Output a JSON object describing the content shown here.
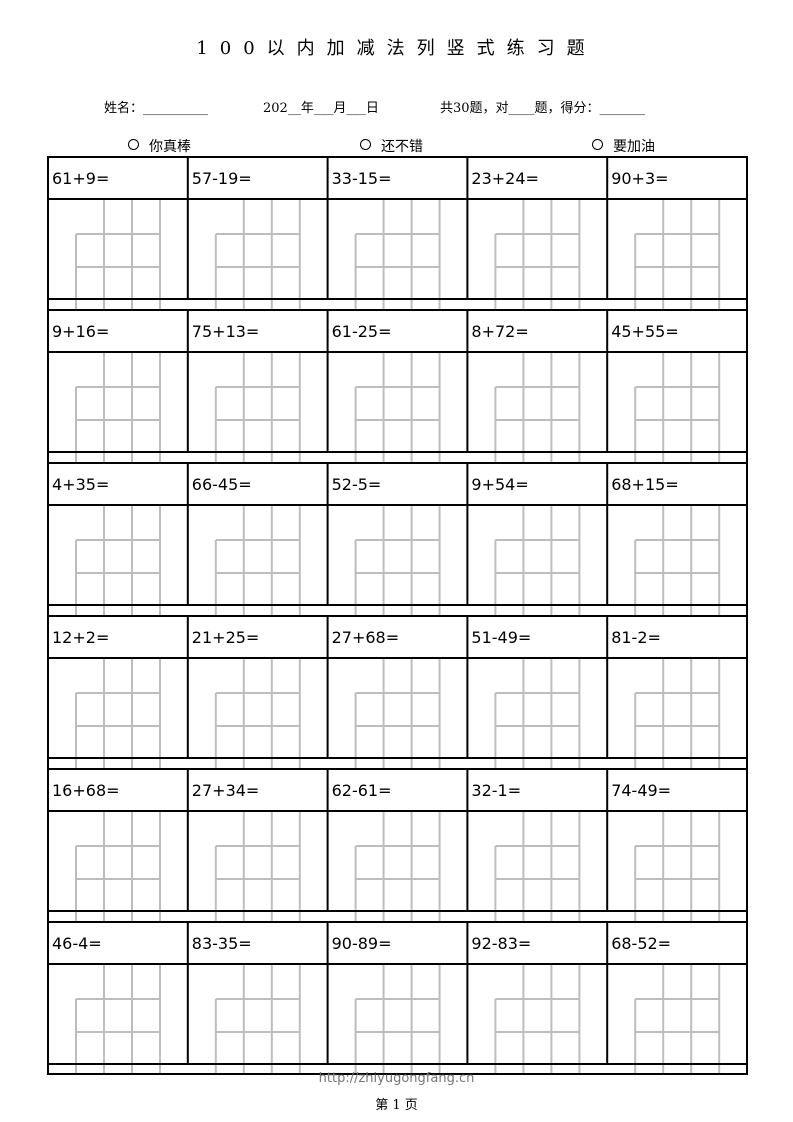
{
  "title": "100以内加减法列竖式练习题",
  "info": {
    "name_label": "姓名：",
    "name_blank": "__________",
    "year": "202__年___月___日",
    "summary": "共30题，对____题，得分：_______"
  },
  "ratings": [
    "你真棒",
    "还不错",
    "要加油"
  ],
  "problems": [
    [
      "61+9=",
      "57-19=",
      "33-15=",
      "23+24=",
      "90+3="
    ],
    [
      "9+16=",
      "75+13=",
      "61-25=",
      "8+72=",
      "45+55="
    ],
    [
      "4+35=",
      "66-45=",
      "52-5=",
      "9+54=",
      "68+15="
    ],
    [
      "12+2=",
      "21+25=",
      "27+68=",
      "51-49=",
      "81-2="
    ],
    [
      "16+68=",
      "27+34=",
      "62-61=",
      "32-1=",
      "74-49="
    ],
    [
      "46-4=",
      "83-35=",
      "90-89=",
      "92-83=",
      "68-52="
    ]
  ],
  "footer": {
    "url": "http://zhiyugongfang.cn",
    "page": "第 1 页"
  }
}
